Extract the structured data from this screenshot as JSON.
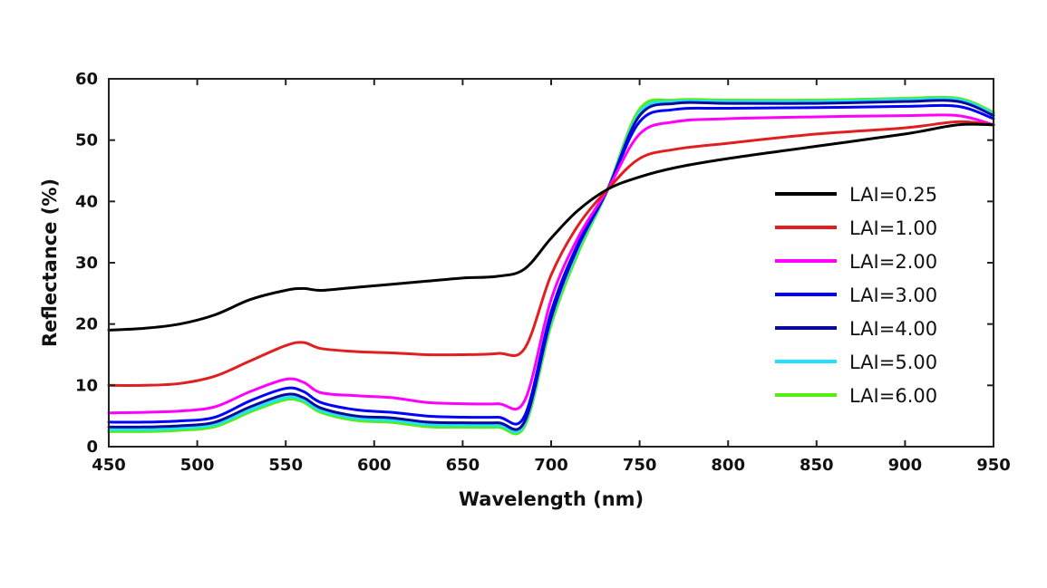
{
  "chart_data": {
    "type": "line",
    "xlabel": "Wavelength (nm)",
    "ylabel": "Reflectance (%)",
    "xlim": [
      450,
      950
    ],
    "ylim": [
      0,
      60
    ],
    "xticks": [
      450,
      500,
      550,
      600,
      650,
      700,
      750,
      800,
      850,
      900,
      950
    ],
    "yticks": [
      0,
      10,
      20,
      30,
      40,
      50,
      60
    ],
    "grid": false,
    "legend_position": "right",
    "x": [
      450,
      470,
      490,
      510,
      530,
      550,
      560,
      570,
      590,
      610,
      630,
      650,
      670,
      685,
      700,
      715,
      732,
      750,
      770,
      800,
      850,
      900,
      930,
      950
    ],
    "series": [
      {
        "name": "LAI=0.25",
        "color": "#000000",
        "values": [
          19.0,
          19.3,
          20.0,
          21.5,
          24.0,
          25.5,
          25.8,
          25.5,
          26.0,
          26.5,
          27.0,
          27.5,
          27.8,
          29.0,
          34.0,
          38.5,
          42.0,
          44.0,
          45.5,
          47.0,
          49.0,
          51.0,
          52.5,
          52.5
        ]
      },
      {
        "name": "LAI=1.00",
        "color": "#e02020",
        "values": [
          10.0,
          10.0,
          10.3,
          11.5,
          14.0,
          16.5,
          17.0,
          16.0,
          15.5,
          15.3,
          15.0,
          15.0,
          15.2,
          16.0,
          28.0,
          36.0,
          42.0,
          47.0,
          48.5,
          49.5,
          51.0,
          52.0,
          53.0,
          52.5
        ]
      },
      {
        "name": "LAI=2.00",
        "color": "#ff00ff",
        "values": [
          5.5,
          5.6,
          5.8,
          6.5,
          9.0,
          11.0,
          10.5,
          8.8,
          8.3,
          8.0,
          7.2,
          7.0,
          7.0,
          7.5,
          24.0,
          34.0,
          42.0,
          51.0,
          53.0,
          53.5,
          53.8,
          54.0,
          54.0,
          52.5
        ]
      },
      {
        "name": "LAI=3.00",
        "color": "#0000ff",
        "values": [
          4.0,
          4.0,
          4.2,
          4.8,
          7.5,
          9.5,
          9.0,
          7.2,
          6.0,
          5.6,
          5.0,
          4.8,
          4.8,
          5.0,
          22.0,
          33.0,
          42.0,
          53.0,
          55.0,
          55.2,
          55.3,
          55.5,
          55.5,
          53.5
        ]
      },
      {
        "name": "LAI=4.00",
        "color": "#0a0a9a",
        "values": [
          3.2,
          3.2,
          3.4,
          4.0,
          6.5,
          8.5,
          8.0,
          6.3,
          5.0,
          4.7,
          4.0,
          3.9,
          3.9,
          4.1,
          21.0,
          32.5,
          42.0,
          54.0,
          56.0,
          56.0,
          56.0,
          56.3,
          56.3,
          54.0
        ]
      },
      {
        "name": "LAI=5.00",
        "color": "#22e0ff",
        "values": [
          2.8,
          2.8,
          3.0,
          3.6,
          6.0,
          8.0,
          7.6,
          5.9,
          4.6,
          4.3,
          3.6,
          3.5,
          3.5,
          3.7,
          20.5,
          32.0,
          42.0,
          54.5,
          56.3,
          56.3,
          56.3,
          56.6,
          56.6,
          54.3
        ]
      },
      {
        "name": "LAI=6.00",
        "color": "#55ee10",
        "values": [
          2.5,
          2.5,
          2.7,
          3.3,
          5.7,
          7.7,
          7.3,
          5.6,
          4.3,
          4.0,
          3.3,
          3.2,
          3.2,
          3.4,
          20.0,
          31.5,
          42.0,
          55.0,
          56.5,
          56.5,
          56.5,
          56.8,
          56.8,
          54.5
        ]
      }
    ]
  }
}
